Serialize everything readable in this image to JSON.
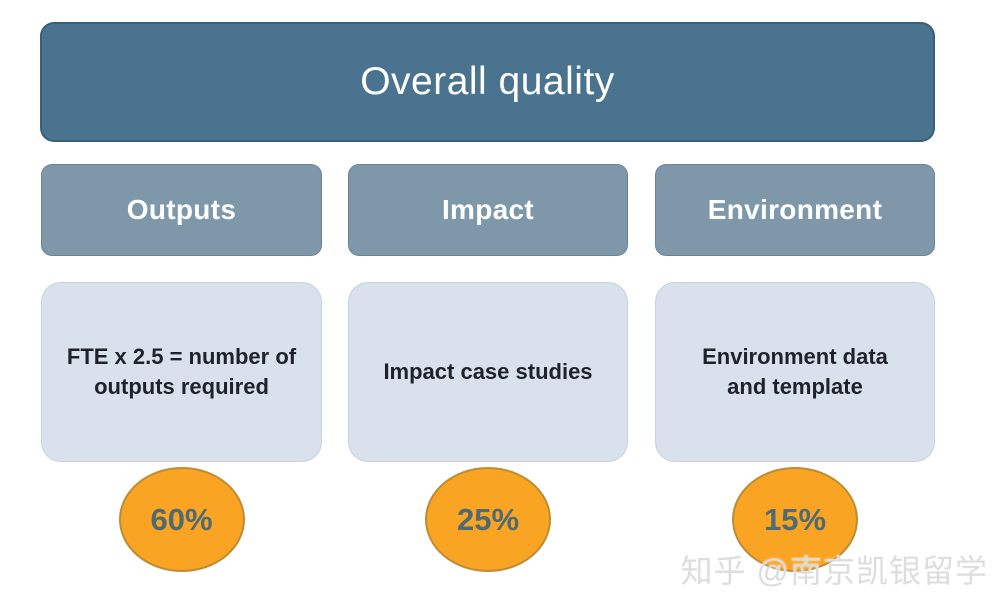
{
  "diagram": {
    "title": "Overall quality",
    "columns": [
      {
        "header": "Outputs",
        "description": "FTE x 2.5 = number of outputs required",
        "percent": "60%"
      },
      {
        "header": "Impact",
        "description": "Impact case studies",
        "percent": "25%"
      },
      {
        "header": "Environment",
        "description": "Environment data and template",
        "percent": "15%"
      }
    ],
    "colors": {
      "title_box_fill": "#4a7390",
      "header_box_fill": "#7e98aa",
      "desc_box_fill": "#d9e1ec",
      "circle_fill": "#f9a422",
      "circle_border": "#bd8c35",
      "percent_text": "#4e6a74"
    }
  },
  "watermark": {
    "text": "知乎 @南京凯银留学"
  }
}
